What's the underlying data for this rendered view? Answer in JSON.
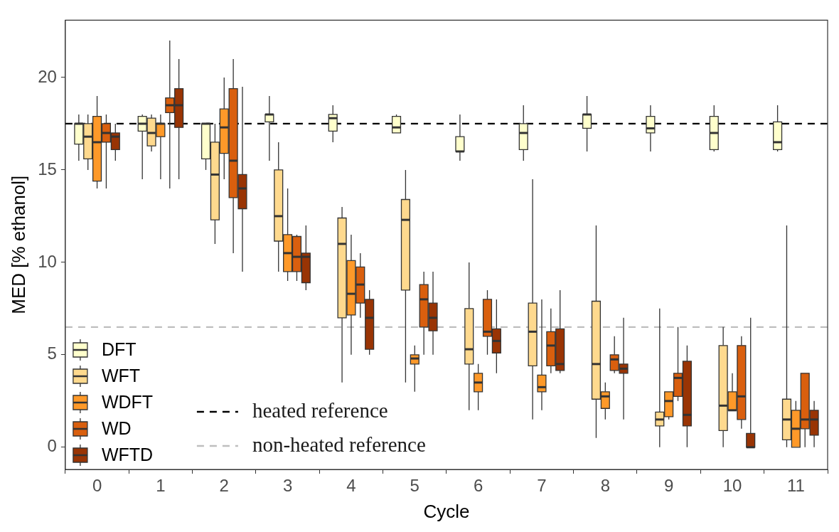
{
  "chart_data": {
    "type": "box",
    "xlabel": "Cycle",
    "ylabel": "MED [% ethanol]",
    "categories": [
      "0",
      "1",
      "2",
      "3",
      "4",
      "5",
      "6",
      "7",
      "8",
      "9",
      "10",
      "11"
    ],
    "ylim": [
      -1.2,
      23.1
    ],
    "yticks": [
      0,
      5,
      10,
      15,
      20
    ],
    "grid": false,
    "legend": "bottom left",
    "series": [
      {
        "name": "DFT",
        "color": "#ffffcc",
        "boxes": [
          {
            "low": 15.5,
            "q1": 16.4,
            "median": 17.5,
            "q3": 17.5,
            "high": 18.0
          },
          {
            "low": 14.5,
            "q1": 17.1,
            "median": 17.5,
            "q3": 17.9,
            "high": 18.0
          },
          {
            "low": 15.0,
            "q1": 15.6,
            "median": 17.5,
            "q3": 17.5,
            "high": 17.5
          },
          {
            "low": 15.5,
            "q1": 17.6,
            "median": 18.0,
            "q3": 18.0,
            "high": 19.0
          },
          {
            "low": 16.5,
            "q1": 17.1,
            "median": 17.8,
            "q3": 18.0,
            "high": 18.5
          },
          {
            "low": 17.0,
            "q1": 17.0,
            "median": 17.3,
            "q3": 17.9,
            "high": 18.0
          },
          {
            "low": 15.5,
            "q1": 16.0,
            "median": 16.0,
            "q3": 16.8,
            "high": 18.0
          },
          {
            "low": 15.5,
            "q1": 16.1,
            "median": 17.0,
            "q3": 17.5,
            "high": 18.5
          },
          {
            "low": 16.0,
            "q1": 17.25,
            "median": 18.0,
            "q3": 18.0,
            "high": 19.0
          },
          {
            "low": 16.0,
            "q1": 17.0,
            "median": 17.25,
            "q3": 17.9,
            "high": 18.5
          },
          {
            "low": 16.0,
            "q1": 16.1,
            "median": 17.0,
            "q3": 17.9,
            "high": 18.5
          },
          {
            "low": 16.0,
            "q1": 16.1,
            "median": 16.5,
            "q3": 17.6,
            "high": 18.5
          }
        ]
      },
      {
        "name": "WFT",
        "color": "#fed98e",
        "boxes": [
          {
            "low": 15.0,
            "q1": 15.6,
            "median": 16.8,
            "q3": 17.5,
            "high": 18.0
          },
          {
            "low": 16.0,
            "q1": 16.3,
            "median": 17.0,
            "q3": 17.8,
            "high": 18.0
          },
          {
            "low": 11.0,
            "q1": 12.3,
            "median": 14.75,
            "q3": 16.5,
            "high": 17.5
          },
          {
            "low": 9.5,
            "q1": 11.15,
            "median": 12.5,
            "q3": 15.0,
            "high": 16.5
          },
          {
            "low": 3.5,
            "q1": 7.0,
            "median": 11.0,
            "q3": 12.4,
            "high": 13.0
          },
          {
            "low": 3.5,
            "q1": 8.5,
            "median": 12.3,
            "q3": 13.4,
            "high": 15.0
          },
          {
            "low": 2.0,
            "q1": 4.5,
            "median": 5.3,
            "q3": 7.5,
            "high": 10.0
          },
          {
            "low": 1.5,
            "q1": 4.4,
            "median": 6.25,
            "q3": 7.8,
            "high": 14.5
          },
          {
            "low": 0.5,
            "q1": 2.6,
            "median": 4.5,
            "q3": 7.9,
            "high": 12.0
          },
          {
            "low": 0.0,
            "q1": 1.15,
            "median": 1.5,
            "q3": 1.9,
            "high": 7.5
          },
          {
            "low": 0.0,
            "q1": 0.9,
            "median": 2.25,
            "q3": 5.5,
            "high": 6.5
          },
          {
            "low": 0.0,
            "q1": 0.4,
            "median": 1.5,
            "q3": 2.6,
            "high": 12.0
          }
        ]
      },
      {
        "name": "WDFT",
        "color": "#fe9929",
        "boxes": [
          {
            "low": 14.0,
            "q1": 14.4,
            "median": 16.5,
            "q3": 17.9,
            "high": 19.0
          },
          {
            "low": 14.5,
            "q1": 16.8,
            "median": 17.5,
            "q3": 17.5,
            "high": 18.0
          },
          {
            "low": 14.5,
            "q1": 15.9,
            "median": 17.3,
            "q3": 18.3,
            "high": 20.0
          },
          {
            "low": 9.0,
            "q1": 9.5,
            "median": 10.5,
            "q3": 11.5,
            "high": 14.0
          },
          {
            "low": 5.0,
            "q1": 7.15,
            "median": 8.3,
            "q3": 10.1,
            "high": 11.5
          },
          {
            "low": 3.0,
            "q1": 4.5,
            "median": 4.8,
            "q3": 5.0,
            "high": 5.5
          },
          {
            "low": 2.0,
            "q1": 3.0,
            "median": 3.5,
            "q3": 4.0,
            "high": 4.5
          },
          {
            "low": 2.0,
            "q1": 3.0,
            "median": 3.25,
            "q3": 3.9,
            "high": 8.0
          },
          {
            "low": 1.5,
            "q1": 2.1,
            "median": 2.75,
            "q3": 3.0,
            "high": 3.5
          },
          {
            "low": 1.5,
            "q1": 1.65,
            "median": 2.5,
            "q3": 3.0,
            "high": 3.0
          },
          {
            "low": 2.0,
            "q1": 2.0,
            "median": 2.0,
            "q3": 3.0,
            "high": 4.0
          },
          {
            "low": 0.0,
            "q1": 0.0,
            "median": 1.0,
            "q3": 2.0,
            "high": 2.5
          }
        ]
      },
      {
        "name": "WD",
        "color": "#d95f0e",
        "boxes": [
          {
            "low": 14.0,
            "q1": 16.5,
            "median": 17.0,
            "q3": 17.5,
            "high": 18.0
          },
          {
            "low": 14.0,
            "q1": 18.1,
            "median": 18.5,
            "q3": 18.9,
            "high": 22.0
          },
          {
            "low": 10.5,
            "q1": 13.5,
            "median": 15.5,
            "q3": 19.4,
            "high": 21.0
          },
          {
            "low": 9.0,
            "q1": 9.5,
            "median": 10.3,
            "q3": 11.4,
            "high": 11.5
          },
          {
            "low": 7.0,
            "q1": 7.8,
            "median": 8.8,
            "q3": 9.75,
            "high": 10.5
          },
          {
            "low": 5.0,
            "q1": 6.5,
            "median": 8.0,
            "q3": 8.8,
            "high": 9.5
          },
          {
            "low": 5.0,
            "q1": 6.0,
            "median": 6.25,
            "q3": 8.0,
            "high": 8.5
          },
          {
            "low": 4.0,
            "q1": 4.4,
            "median": 5.5,
            "q3": 6.25,
            "high": 7.5
          },
          {
            "low": 4.0,
            "q1": 4.15,
            "median": 4.75,
            "q3": 5.0,
            "high": 6.0
          },
          {
            "low": 2.5,
            "q1": 2.75,
            "median": 3.75,
            "q3": 4.0,
            "high": 6.5
          },
          {
            "low": 1.0,
            "q1": 1.5,
            "median": 2.75,
            "q3": 5.5,
            "high": 6.0
          },
          {
            "low": 0.0,
            "q1": 1.0,
            "median": 1.5,
            "q3": 4.0,
            "high": 4.0
          }
        ]
      },
      {
        "name": "WFTD",
        "color": "#993404",
        "boxes": [
          {
            "low": 15.5,
            "q1": 16.1,
            "median": 16.8,
            "q3": 17.0,
            "high": 17.5
          },
          {
            "low": 14.5,
            "q1": 17.3,
            "median": 18.5,
            "q3": 19.4,
            "high": 21.0
          },
          {
            "low": 9.5,
            "q1": 12.9,
            "median": 14.0,
            "q3": 14.75,
            "high": 19.5
          },
          {
            "low": 8.5,
            "q1": 8.9,
            "median": 10.3,
            "q3": 10.5,
            "high": 12.0
          },
          {
            "low": 5.0,
            "q1": 5.3,
            "median": 7.0,
            "q3": 8.0,
            "high": 8.5
          },
          {
            "low": 5.0,
            "q1": 6.3,
            "median": 7.0,
            "q3": 7.8,
            "high": 9.5
          },
          {
            "low": 4.0,
            "q1": 5.1,
            "median": 5.75,
            "q3": 6.4,
            "high": 8.0
          },
          {
            "low": 4.0,
            "q1": 4.15,
            "median": 4.5,
            "q3": 6.4,
            "high": 8.5
          },
          {
            "low": 1.5,
            "q1": 4.0,
            "median": 4.25,
            "q3": 4.5,
            "high": 7.0
          },
          {
            "low": 0.0,
            "q1": 1.15,
            "median": 1.75,
            "q3": 4.65,
            "high": 5.5
          },
          {
            "low": 0.0,
            "q1": 0.0,
            "median": 0.0,
            "q3": 0.75,
            "high": 7.0
          },
          {
            "low": 0.0,
            "q1": 0.65,
            "median": 1.5,
            "q3": 2.0,
            "high": 2.5
          }
        ]
      }
    ],
    "ref_lines": [
      {
        "axis": "y",
        "value": 17.5,
        "label": "heated reference",
        "color": "#000000",
        "line_style": "dashed"
      },
      {
        "axis": "y",
        "value": 6.5,
        "label": "non-heated reference",
        "color": "#bebebe",
        "line_style": "dashed"
      }
    ]
  }
}
